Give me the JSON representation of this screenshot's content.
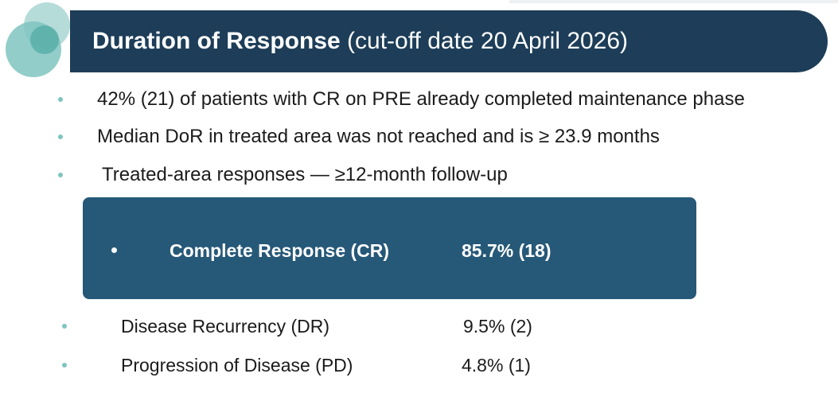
{
  "header": {
    "title_bold": "Duration of Response",
    "title_rest": "(cut-off date 20 April 2026)"
  },
  "bullets": [
    "42% (21) of patients with CR on PRE already completed maintenance phase",
    "Median DoR in treated area was not reached  and is ≥ 23.9 months",
    "Treated-area responses — ≥12-month follow-up"
  ],
  "responses": {
    "highlight": {
      "label": "Complete Response  (CR)",
      "value": "85.7% (18)"
    },
    "rows": [
      {
        "label": "Disease Recurrency  (DR)",
        "value": "9.5% (2)"
      },
      {
        "label": "Progression of Disease (PD)",
        "value": "4.8% (1)"
      }
    ]
  },
  "colors": {
    "banner": "#1d3d58",
    "highlight_box": "#265878",
    "bullet": "#7fc4c0",
    "circle_light": "#a9d6d3",
    "circle_mid": "#5fb3ad"
  }
}
